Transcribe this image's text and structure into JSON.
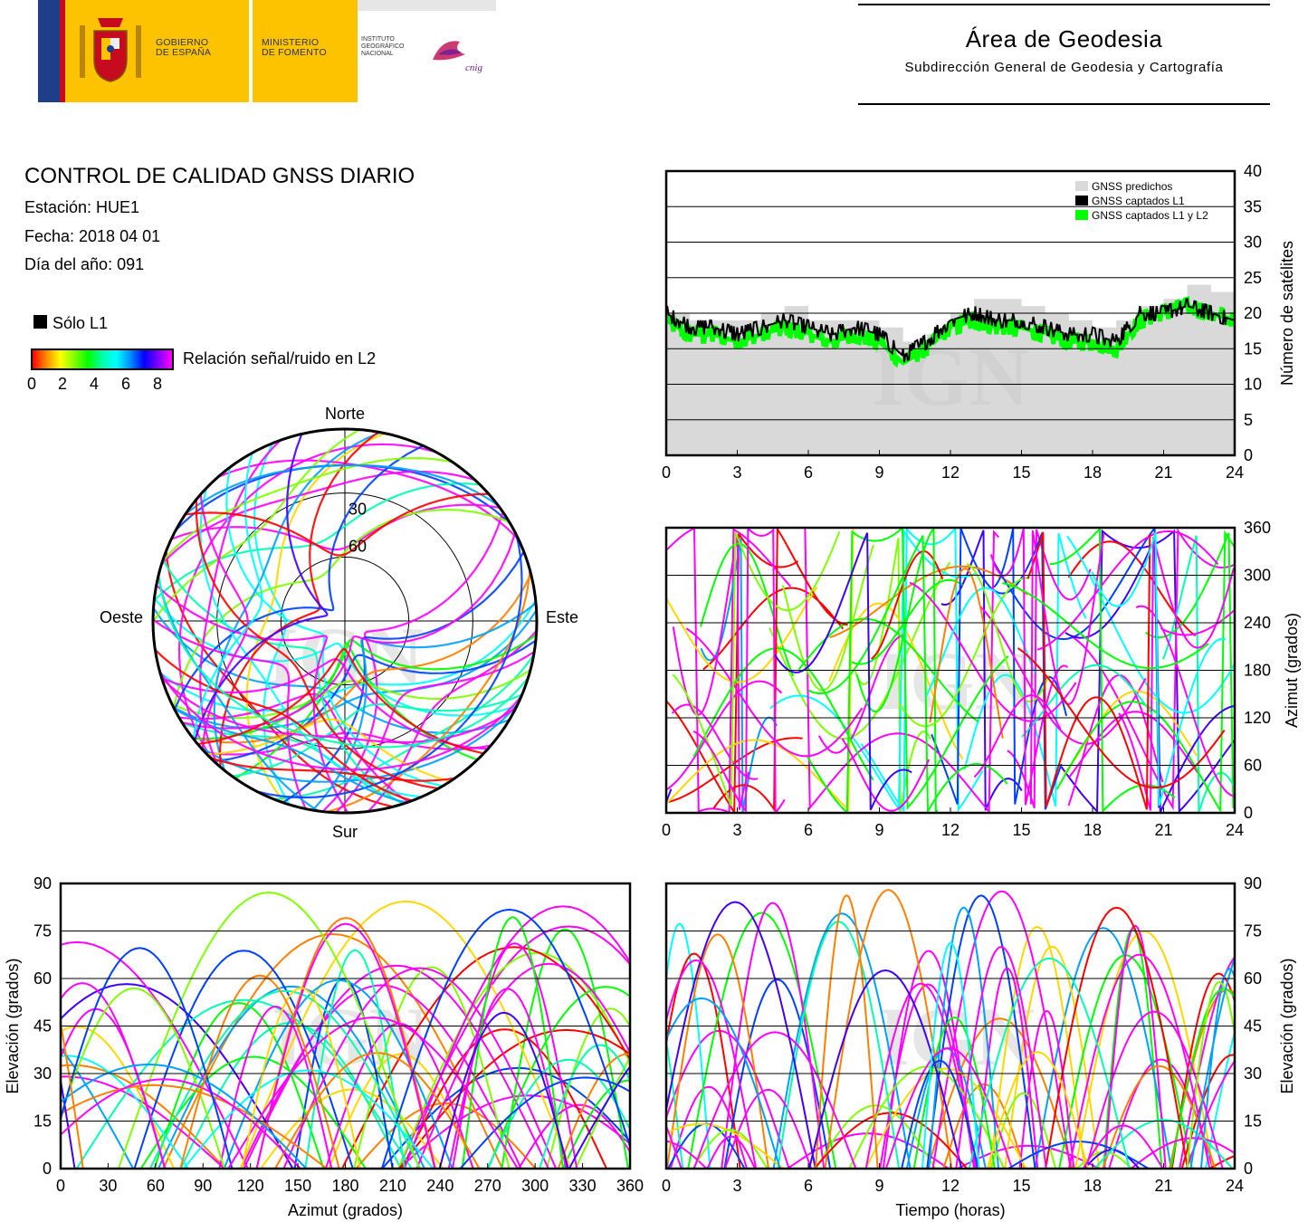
{
  "header": {
    "gobierno": "GOBIERNO\nDE ESPAÑA",
    "ministerio": "MINISTERIO\nDE FOMENTO",
    "instituto": "INSTITUTO\nGEOGRÁFICO\nNACIONAL",
    "cnig": "cnig",
    "area_title": "Área de Geodesia",
    "area_subtitle": "Subdirección General de Geodesia y Cartografía"
  },
  "report": {
    "title": "CONTROL DE CALIDAD GNSS DIARIO",
    "station": "Estación: HUE1",
    "date": "Fecha: 2018 04 01",
    "doy": "Día del año: 091"
  },
  "legend": {
    "l1_only": "Sólo L1",
    "snr_label": "Relación señal/ruido en L2",
    "snr_ticks": [
      "0",
      "2",
      "4",
      "6",
      "8"
    ]
  },
  "watermark": "IGN",
  "colors": {
    "l1_only": "#000000",
    "predicted": "#d9d9d9",
    "l1l2": "#00ff00",
    "snr_high": "#ff00ff",
    "frame": "#000000"
  },
  "chart_data": [
    {
      "id": "satellite_count",
      "type": "area",
      "x_ticks": [
        "0",
        "3",
        "6",
        "9",
        "12",
        "15",
        "18",
        "21",
        "24"
      ],
      "y_ticks": [
        "0",
        "5",
        "10",
        "15",
        "20",
        "25",
        "30",
        "35",
        "40"
      ],
      "xlim": [
        0,
        24
      ],
      "ylim": [
        0,
        40
      ],
      "ylabel": "Número de satélites",
      "legend_position": "top-right",
      "grid": true,
      "series": [
        {
          "name": "GNSS predichos",
          "color": "#d9d9d9",
          "x": [
            0,
            1,
            2,
            3,
            4,
            5,
            6,
            7,
            8,
            9,
            10,
            11,
            12,
            13,
            14,
            15,
            16,
            17,
            18,
            19,
            20,
            21,
            22,
            23,
            24
          ],
          "values": [
            20,
            19,
            19,
            19,
            20,
            21,
            19,
            19,
            19,
            18,
            16,
            17,
            20,
            22,
            22,
            21,
            20,
            19,
            18,
            19,
            21,
            22,
            24,
            23,
            21
          ]
        },
        {
          "name": "GNSS captados L1",
          "color": "#000000",
          "x": [
            0,
            1,
            2,
            3,
            4,
            5,
            6,
            7,
            8,
            9,
            10,
            11,
            12,
            13,
            14,
            15,
            16,
            17,
            18,
            19,
            20,
            21,
            22,
            23,
            24
          ],
          "values": [
            20,
            18,
            18,
            17,
            18,
            19,
            18,
            17,
            18,
            17,
            14,
            16,
            19,
            20,
            19,
            19,
            18,
            17,
            17,
            16,
            20,
            20,
            21,
            20,
            19
          ]
        },
        {
          "name": "GNSS captados L1 y L2",
          "color": "#00ff00",
          "x": [
            0,
            1,
            2,
            3,
            4,
            5,
            6,
            7,
            8,
            9,
            10,
            11,
            12,
            13,
            14,
            15,
            16,
            17,
            18,
            19,
            20,
            21,
            22,
            23,
            24
          ],
          "values": [
            19,
            17,
            17,
            16,
            17,
            18,
            17,
            16,
            17,
            16,
            13,
            15,
            18,
            19,
            18,
            18,
            17,
            16,
            16,
            15,
            19,
            20,
            21,
            20,
            19
          ]
        }
      ]
    },
    {
      "id": "skyplot",
      "type": "scatter",
      "direction_labels": {
        "north": "Norte",
        "south": "Sur",
        "west": "Oeste",
        "east": "Este"
      },
      "ring_labels": [
        "30",
        "60"
      ]
    },
    {
      "id": "azimuth_vs_time",
      "type": "scatter",
      "x_ticks": [
        "0",
        "3",
        "6",
        "9",
        "12",
        "15",
        "18",
        "21",
        "24"
      ],
      "y_ticks": [
        "0",
        "60",
        "120",
        "180",
        "240",
        "300",
        "360"
      ],
      "xlim": [
        0,
        24
      ],
      "ylim": [
        0,
        360
      ],
      "ylabel": "Azimut (grados)",
      "grid": true
    },
    {
      "id": "elevation_vs_azimuth",
      "type": "scatter",
      "x_ticks": [
        "0",
        "30",
        "60",
        "90",
        "120",
        "150",
        "180",
        "210",
        "240",
        "270",
        "300",
        "330",
        "360"
      ],
      "y_ticks": [
        "0",
        "15",
        "30",
        "45",
        "60",
        "75",
        "90"
      ],
      "xlim": [
        0,
        360
      ],
      "ylim": [
        0,
        90
      ],
      "xlabel": "Azimut (grados)",
      "ylabel": "Elevación (grados)",
      "grid": true
    },
    {
      "id": "elevation_vs_time",
      "type": "scatter",
      "x_ticks": [
        "0",
        "3",
        "6",
        "9",
        "12",
        "15",
        "18",
        "21",
        "24"
      ],
      "y_ticks": [
        "0",
        "15",
        "30",
        "45",
        "60",
        "75",
        "90"
      ],
      "xlim": [
        0,
        24
      ],
      "ylim": [
        0,
        90
      ],
      "xlabel": "Tiempo (horas)",
      "ylabel": "Elevación (grados)",
      "grid": true
    }
  ]
}
